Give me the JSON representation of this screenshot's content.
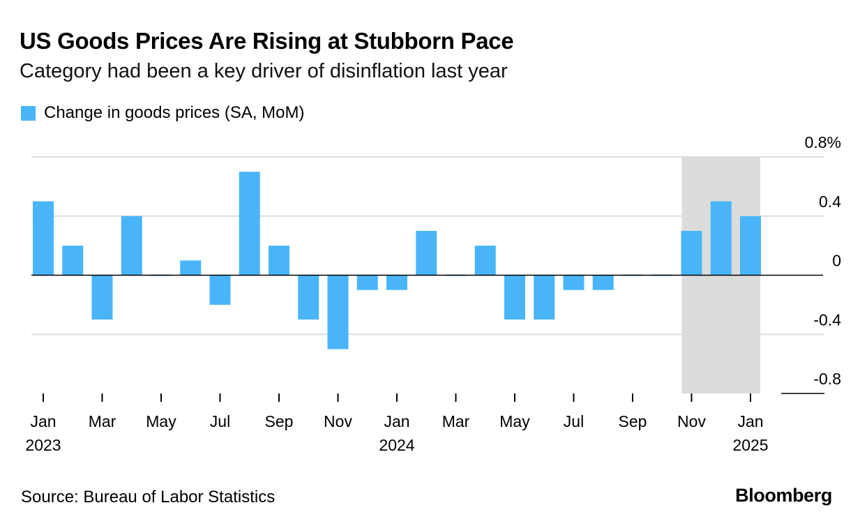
{
  "title": "US Goods Prices Are Rising at Stubborn Pace",
  "subtitle": "Category had been a key driver of disinflation last year",
  "source": "Source: Bureau of Labor Statistics",
  "brand": "Bloomberg",
  "colors": {
    "bar": "#49b5f8",
    "highlight": "#dcdcdc",
    "grid": "#dddddd",
    "axis": "#000000"
  },
  "chart_data": {
    "type": "bar",
    "legend": [
      "Change in goods prices (SA, MoM)"
    ],
    "series": [
      {
        "name": "Change in goods prices (SA, MoM)",
        "values": [
          0.5,
          0.2,
          -0.3,
          0.4,
          0.0,
          0.1,
          -0.2,
          0.7,
          0.2,
          -0.3,
          -0.5,
          -0.1,
          -0.1,
          0.3,
          0.0,
          0.2,
          -0.3,
          -0.3,
          -0.1,
          -0.1,
          0.0,
          0.0,
          0.3,
          0.5,
          0.4
        ]
      }
    ],
    "categories": [
      "Jan 2023",
      "Feb 2023",
      "Mar 2023",
      "Apr 2023",
      "May 2023",
      "Jun 2023",
      "Jul 2023",
      "Aug 2023",
      "Sep 2023",
      "Oct 2023",
      "Nov 2023",
      "Dec 2023",
      "Jan 2024",
      "Feb 2024",
      "Mar 2024",
      "Apr 2024",
      "May 2024",
      "Jun 2024",
      "Jul 2024",
      "Aug 2024",
      "Sep 2024",
      "Oct 2024",
      "Nov 2024",
      "Dec 2024",
      "Jan 2025"
    ],
    "ylim": [
      -0.8,
      0.8
    ],
    "yticks": [
      0.8,
      0.4,
      0,
      -0.4,
      -0.8
    ],
    "ytick_labels": [
      "0.8%",
      "0.4",
      "0",
      "-0.4",
      "-0.8"
    ],
    "xtick_labels": [
      {
        "month": "Jan",
        "year": "2023"
      },
      {
        "month": "Mar",
        "year": ""
      },
      {
        "month": "May",
        "year": ""
      },
      {
        "month": "Jul",
        "year": ""
      },
      {
        "month": "Sep",
        "year": ""
      },
      {
        "month": "Nov",
        "year": ""
      },
      {
        "month": "Jan",
        "year": "2024"
      },
      {
        "month": "Mar",
        "year": ""
      },
      {
        "month": "May",
        "year": ""
      },
      {
        "month": "Jul",
        "year": ""
      },
      {
        "month": "Sep",
        "year": ""
      },
      {
        "month": "Nov",
        "year": ""
      },
      {
        "month": "Jan",
        "year": "2025"
      }
    ],
    "highlight_range": [
      "Nov 2024",
      "Jan 2025"
    ],
    "grid": true,
    "xlabel": "",
    "ylabel": ""
  }
}
